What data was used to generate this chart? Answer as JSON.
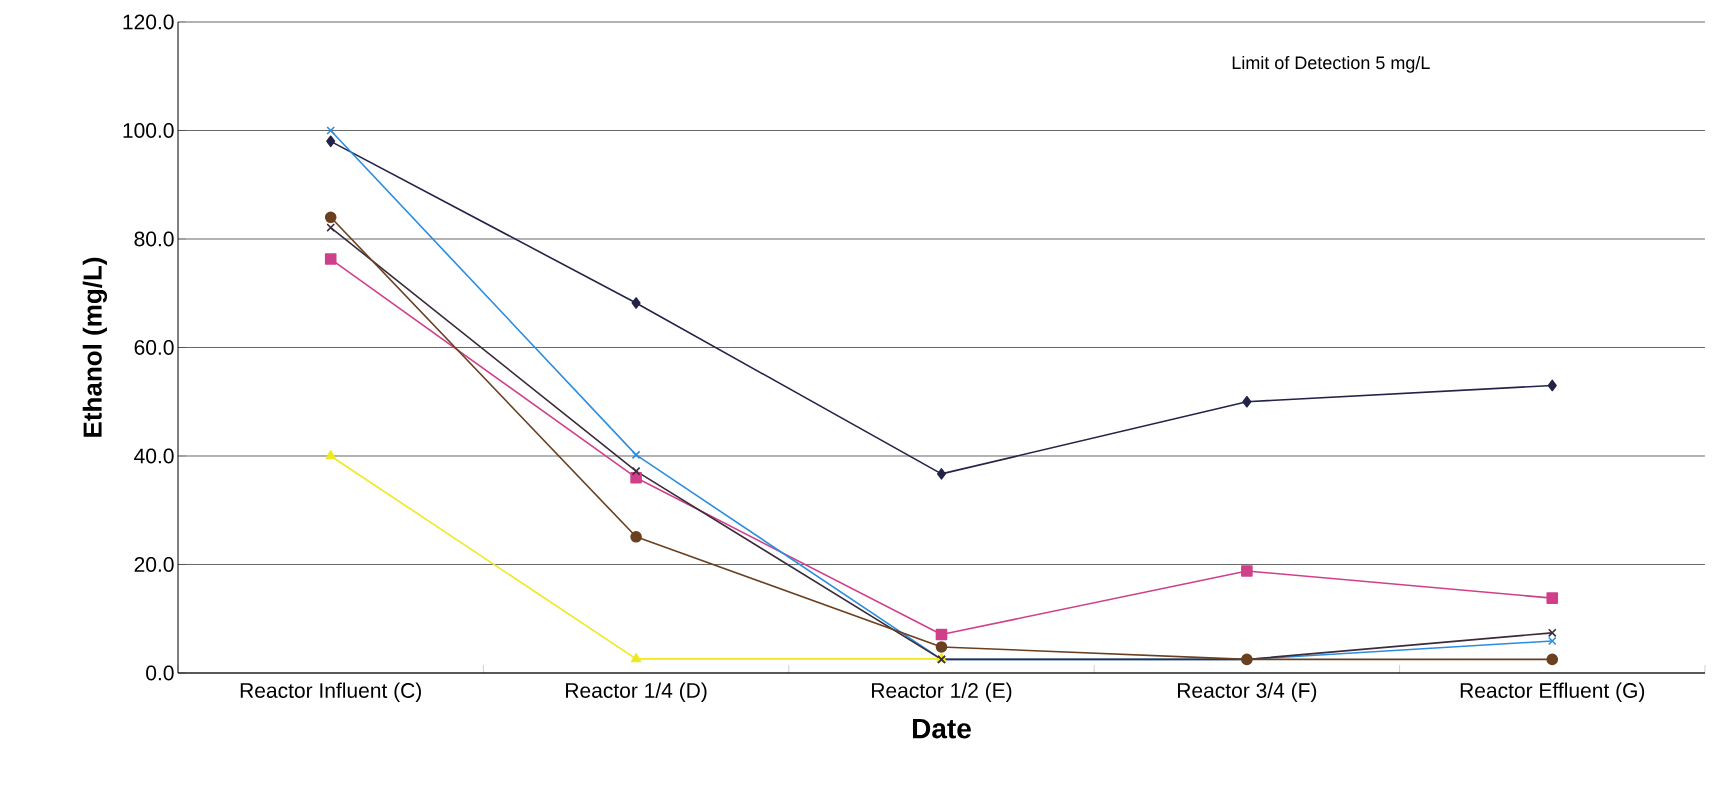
{
  "chart_data": {
    "type": "line",
    "xlabel": "Date",
    "ylabel": "Ethanol (mg/L)",
    "annotations": [
      "Limit of Detection 5 mg/L"
    ],
    "categories": [
      "Reactor Influent (C)",
      "Reactor 1/4 (D)",
      "Reactor 1/2 (E)",
      "Reactor 3/4 (F)",
      "Reactor Effluent (G)"
    ],
    "series": [
      {
        "color": "#23234a",
        "marker": "diamond",
        "values": [
          98.0,
          68.2,
          36.7,
          50.0,
          53.0
        ]
      },
      {
        "color": "#d0408a",
        "marker": "square",
        "values": [
          76.3,
          36.0,
          7.1,
          18.8,
          13.8
        ]
      },
      {
        "color": "#f0e820",
        "marker": "triangle",
        "values": [
          40.0,
          2.6,
          2.6,
          null,
          null
        ]
      },
      {
        "color": "#2a8de0",
        "marker": "cross",
        "values": [
          100.0,
          40.2,
          2.5,
          2.5,
          5.9
        ]
      },
      {
        "color": "#3a2a3a",
        "marker": "cross",
        "values": [
          82.1,
          37.2,
          2.5,
          2.5,
          7.4
        ]
      },
      {
        "color": "#6a4020",
        "marker": "circle",
        "values": [
          84.0,
          25.1,
          4.8,
          2.5,
          2.5
        ]
      }
    ],
    "ylim": [
      0,
      120
    ],
    "yticks": [
      {
        "value": 0,
        "label": "0.0"
      },
      {
        "value": 20,
        "label": "20.0"
      },
      {
        "value": 40,
        "label": "40.0"
      },
      {
        "value": 60,
        "label": "60.0"
      },
      {
        "value": 80,
        "label": "80.0"
      },
      {
        "value": 100,
        "label": "100.0"
      },
      {
        "value": 120,
        "label": "120.0"
      }
    ],
    "grid": "y",
    "line_style": "solid"
  }
}
